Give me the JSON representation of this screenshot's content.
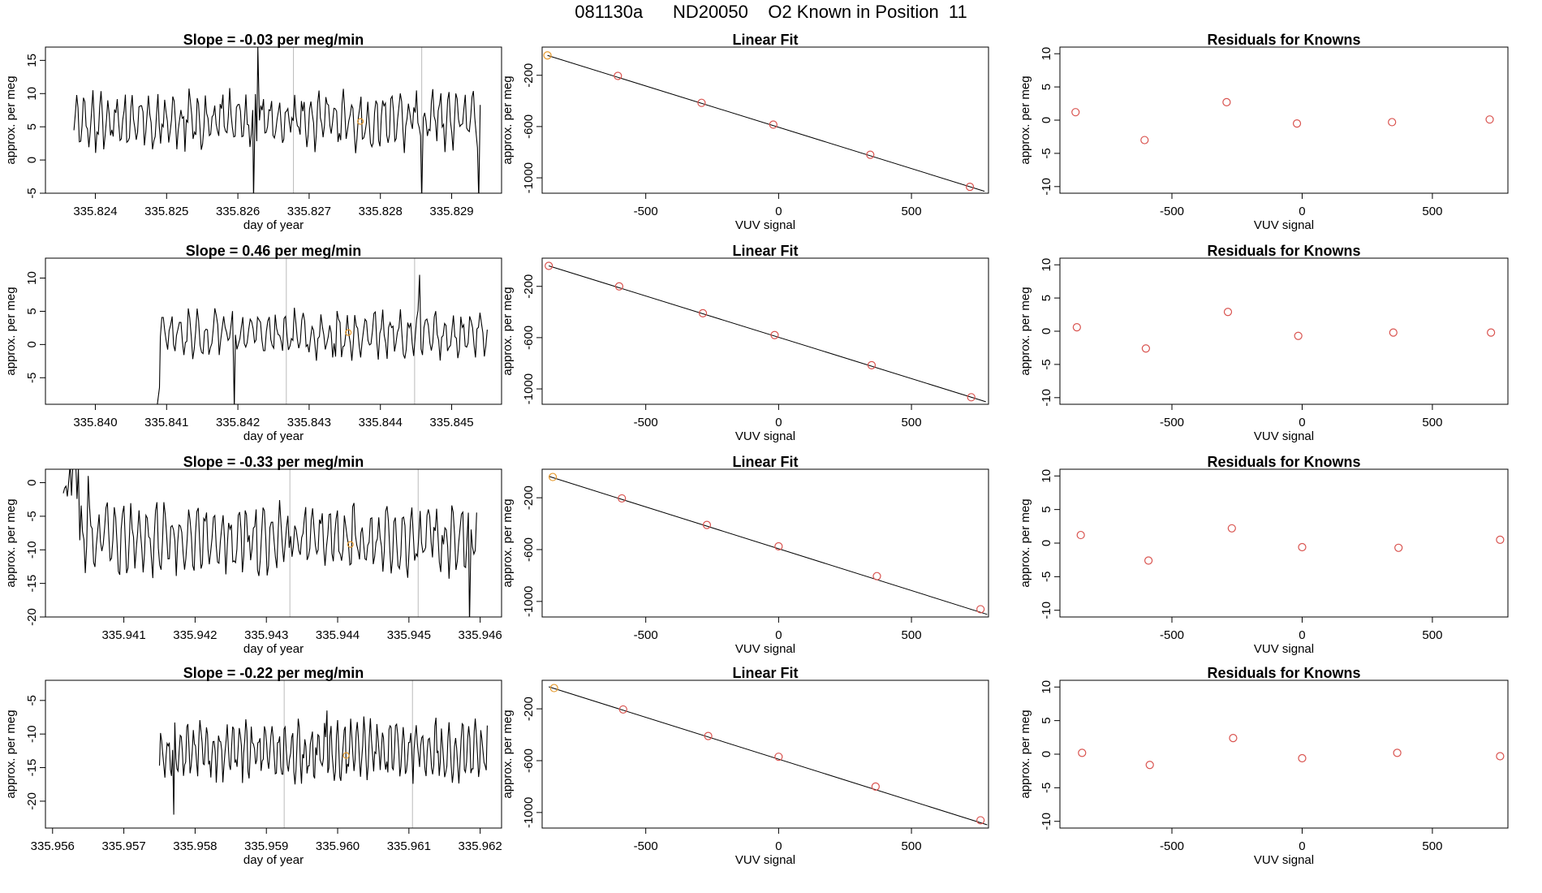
{
  "figure": {
    "title": "081130a      ND20050    O2 Known in Position  11"
  },
  "colors": {
    "trace": "#000000",
    "marker_red": "#d9534f",
    "marker_orange": "#e69a2e",
    "vline": "#bbbbbb"
  },
  "chart_data": [
    {
      "type": "line",
      "row": 0,
      "col": 0,
      "title": "Slope =  -0.03  per meg/min",
      "xlabel": "day of year",
      "ylabel": "approx. per meg",
      "xlim": [
        335.8233,
        335.8297
      ],
      "ylim": [
        -5,
        17
      ],
      "xticks": [
        335.824,
        335.825,
        335.826,
        335.827,
        335.828,
        335.829
      ],
      "yticks": [
        -5,
        0,
        5,
        10,
        15
      ],
      "x_start": 335.8237,
      "x_end": 335.8294,
      "baseline": 6,
      "amplitude": 3.2,
      "noise": 1.0,
      "seed": 11,
      "spikes": [
        {
          "x": 335.82622,
          "y": -6
        },
        {
          "x": 335.82628,
          "y": 17
        },
        {
          "x": 335.82858,
          "y": -6
        },
        {
          "x": 335.82938,
          "y": -6
        }
      ],
      "vlines": [
        335.82678,
        335.82858
      ],
      "marker": {
        "x": 335.82772,
        "y": 5.8
      }
    },
    {
      "type": "scatter",
      "row": 0,
      "col": 1,
      "title": "Linear Fit",
      "xlabel": "VUV signal",
      "ylabel": "approx. per meg",
      "xlim": [
        -890,
        790
      ],
      "ylim": [
        -1120,
        20
      ],
      "xticks": [
        -500,
        0,
        500
      ],
      "yticks": [
        -1000,
        -600,
        -200
      ],
      "points": [
        {
          "x": -870,
          "y": -45,
          "color": "orange"
        },
        {
          "x": -605,
          "y": -205,
          "color": "red"
        },
        {
          "x": -290,
          "y": -415,
          "color": "red"
        },
        {
          "x": -20,
          "y": -585,
          "color": "red"
        },
        {
          "x": 345,
          "y": -820,
          "color": "red"
        },
        {
          "x": 720,
          "y": -1070,
          "color": "red"
        }
      ],
      "fit": {
        "x": [
          -870,
          775
        ],
        "y": [
          -45,
          -1105
        ]
      }
    },
    {
      "type": "scatter",
      "row": 0,
      "col": 2,
      "title": "Residuals for Knowns",
      "xlabel": "VUV signal",
      "ylabel": "approx. per meg",
      "xlim": [
        -930,
        790
      ],
      "ylim": [
        -11,
        11
      ],
      "xticks": [
        -500,
        0,
        500
      ],
      "yticks": [
        -10,
        -5,
        0,
        5,
        10
      ],
      "points": [
        {
          "x": -870,
          "y": 1.2,
          "color": "red"
        },
        {
          "x": -605,
          "y": -3.0,
          "color": "red"
        },
        {
          "x": -290,
          "y": 2.7,
          "color": "red"
        },
        {
          "x": -20,
          "y": -0.5,
          "color": "red"
        },
        {
          "x": 345,
          "y": -0.3,
          "color": "red"
        },
        {
          "x": 720,
          "y": 0.1,
          "color": "red"
        }
      ]
    },
    {
      "type": "line",
      "row": 1,
      "col": 0,
      "title": "Slope =  0.46  per meg/min",
      "xlabel": "day of year",
      "ylabel": "approx. per meg",
      "xlim": [
        335.8393,
        335.8457
      ],
      "ylim": [
        -9,
        13
      ],
      "xticks": [
        335.84,
        335.841,
        335.842,
        335.843,
        335.844,
        335.845
      ],
      "yticks": [
        -5,
        0,
        5,
        10
      ],
      "x_start": 335.8393,
      "x_end": 335.8455,
      "baseline": 1.5,
      "amplitude": 2.6,
      "noise": 1.0,
      "seed": 23,
      "flat_until": 335.8409,
      "flat_value": -9,
      "spikes": [
        {
          "x": 335.8409,
          "y": -6.5
        },
        {
          "x": 335.84195,
          "y": -9.5
        },
        {
          "x": 335.84455,
          "y": 10.5
        }
      ],
      "vlines": [
        335.84268,
        335.84448
      ],
      "marker": {
        "x": 335.84355,
        "y": 1.8
      }
    },
    {
      "type": "scatter",
      "row": 1,
      "col": 1,
      "title": "Linear Fit",
      "xlabel": "VUV signal",
      "ylabel": "approx. per meg",
      "xlim": [
        -890,
        790
      ],
      "ylim": [
        -1120,
        20
      ],
      "xticks": [
        -500,
        0,
        500
      ],
      "yticks": [
        -1000,
        -600,
        -200
      ],
      "points": [
        {
          "x": -865,
          "y": -40,
          "color": "red"
        },
        {
          "x": -600,
          "y": -200,
          "color": "red"
        },
        {
          "x": -285,
          "y": -410,
          "color": "red"
        },
        {
          "x": -15,
          "y": -580,
          "color": "red"
        },
        {
          "x": 350,
          "y": -815,
          "color": "red"
        },
        {
          "x": 725,
          "y": -1065,
          "color": "red"
        }
      ],
      "fit": {
        "x": [
          -865,
          780
        ],
        "y": [
          -40,
          -1100
        ]
      }
    },
    {
      "type": "scatter",
      "row": 1,
      "col": 2,
      "title": "Residuals for Knowns",
      "xlabel": "VUV signal",
      "ylabel": "approx. per meg",
      "xlim": [
        -930,
        790
      ],
      "ylim": [
        -11,
        11
      ],
      "xticks": [
        -500,
        0,
        500
      ],
      "yticks": [
        -10,
        -5,
        0,
        5,
        10
      ],
      "points": [
        {
          "x": -865,
          "y": 0.6,
          "color": "red"
        },
        {
          "x": -600,
          "y": -2.6,
          "color": "red"
        },
        {
          "x": -285,
          "y": 2.9,
          "color": "red"
        },
        {
          "x": -15,
          "y": -0.7,
          "color": "red"
        },
        {
          "x": 350,
          "y": -0.2,
          "color": "red"
        },
        {
          "x": 725,
          "y": -0.2,
          "color": "red"
        }
      ]
    },
    {
      "type": "line",
      "row": 2,
      "col": 0,
      "title": "Slope =  -0.33  per meg/min",
      "xlabel": "day of year",
      "ylabel": "approx. per meg",
      "xlim": [
        335.9399,
        335.9463
      ],
      "ylim": [
        -20,
        2
      ],
      "xticks": [
        335.941,
        335.942,
        335.943,
        335.944,
        335.945,
        335.946
      ],
      "yticks": [
        -20,
        -15,
        -10,
        -5,
        0
      ],
      "x_start": 335.94015,
      "x_end": 335.94595,
      "baseline": -8.5,
      "amplitude": 3.8,
      "noise": 1.0,
      "seed": 37,
      "start_high": true,
      "spikes": [
        {
          "x": 335.9403,
          "y": 2.5
        },
        {
          "x": 335.9405,
          "y": 1
        },
        {
          "x": 335.94585,
          "y": -21
        }
      ],
      "vlines": [
        335.94333,
        335.94513
      ],
      "marker": {
        "x": 335.94418,
        "y": -9.2
      }
    },
    {
      "type": "scatter",
      "row": 2,
      "col": 1,
      "title": "Linear Fit",
      "xlabel": "VUV signal",
      "ylabel": "approx. per meg",
      "xlim": [
        -890,
        790
      ],
      "ylim": [
        -1120,
        20
      ],
      "xticks": [
        -500,
        0,
        500
      ],
      "yticks": [
        -1000,
        -600,
        -200
      ],
      "points": [
        {
          "x": -850,
          "y": -40,
          "color": "orange"
        },
        {
          "x": -590,
          "y": -205,
          "color": "red"
        },
        {
          "x": -270,
          "y": -410,
          "color": "red"
        },
        {
          "x": 0,
          "y": -575,
          "color": "red"
        },
        {
          "x": 370,
          "y": -805,
          "color": "red"
        },
        {
          "x": 760,
          "y": -1060,
          "color": "red"
        }
      ],
      "fit": {
        "x": [
          -865,
          785
        ],
        "y": [
          -35,
          -1100
        ]
      }
    },
    {
      "type": "scatter",
      "row": 2,
      "col": 2,
      "title": "Residuals for Knowns",
      "xlabel": "VUV signal",
      "ylabel": "approx. per meg",
      "xlim": [
        -930,
        790
      ],
      "ylim": [
        -11,
        11
      ],
      "xticks": [
        -500,
        0,
        500
      ],
      "yticks": [
        -10,
        -5,
        0,
        5,
        10
      ],
      "points": [
        {
          "x": -850,
          "y": 1.2,
          "color": "red"
        },
        {
          "x": -590,
          "y": -2.6,
          "color": "red"
        },
        {
          "x": -270,
          "y": 2.2,
          "color": "red"
        },
        {
          "x": 0,
          "y": -0.6,
          "color": "red"
        },
        {
          "x": 370,
          "y": -0.7,
          "color": "red"
        },
        {
          "x": 760,
          "y": 0.5,
          "color": "red"
        }
      ]
    },
    {
      "type": "line",
      "row": 3,
      "col": 0,
      "title": "Slope =  -0.22  per meg/min",
      "xlabel": "day of year",
      "ylabel": "approx. per meg",
      "xlim": [
        335.9559,
        335.9623
      ],
      "ylim": [
        -24,
        -2
      ],
      "xticks": [
        335.956,
        335.957,
        335.958,
        335.959,
        335.96,
        335.961,
        335.962
      ],
      "yticks": [
        -20,
        -15,
        -10,
        -5
      ],
      "x_start": 335.9575,
      "x_end": 335.9621,
      "baseline": -12.5,
      "amplitude": 3.2,
      "noise": 1.0,
      "seed": 53,
      "flat_until": 335.9575,
      "flat_value": -24,
      "spikes": [
        {
          "x": 335.9577,
          "y": -22
        },
        {
          "x": 335.95985,
          "y": -6.5
        }
      ],
      "vlines": [
        335.95925,
        335.96105
      ],
      "marker": {
        "x": 335.96012,
        "y": -13.2
      }
    },
    {
      "type": "scatter",
      "row": 3,
      "col": 1,
      "title": "Linear Fit",
      "xlabel": "VUV signal",
      "ylabel": "approx. per meg",
      "xlim": [
        -890,
        790
      ],
      "ylim": [
        -1120,
        20
      ],
      "xticks": [
        -500,
        0,
        500
      ],
      "yticks": [
        -1000,
        -600,
        -200
      ],
      "points": [
        {
          "x": -845,
          "y": -40,
          "color": "orange"
        },
        {
          "x": -585,
          "y": -205,
          "color": "red"
        },
        {
          "x": -265,
          "y": -410,
          "color": "red"
        },
        {
          "x": 0,
          "y": -570,
          "color": "red"
        },
        {
          "x": 365,
          "y": -800,
          "color": "red"
        },
        {
          "x": 760,
          "y": -1060,
          "color": "red"
        }
      ],
      "fit": {
        "x": [
          -865,
          785
        ],
        "y": [
          -30,
          -1095
        ]
      }
    },
    {
      "type": "scatter",
      "row": 3,
      "col": 2,
      "title": "Residuals for Knowns",
      "xlabel": "VUV signal",
      "ylabel": "approx. per meg",
      "xlim": [
        -930,
        790
      ],
      "ylim": [
        -11,
        11
      ],
      "xticks": [
        -500,
        0,
        500
      ],
      "yticks": [
        -10,
        -5,
        0,
        5,
        10
      ],
      "points": [
        {
          "x": -845,
          "y": 0.2,
          "color": "red"
        },
        {
          "x": -585,
          "y": -1.6,
          "color": "red"
        },
        {
          "x": -265,
          "y": 2.4,
          "color": "red"
        },
        {
          "x": 0,
          "y": -0.6,
          "color": "red"
        },
        {
          "x": 365,
          "y": 0.2,
          "color": "red"
        },
        {
          "x": 760,
          "y": -0.3,
          "color": "red"
        }
      ]
    }
  ]
}
